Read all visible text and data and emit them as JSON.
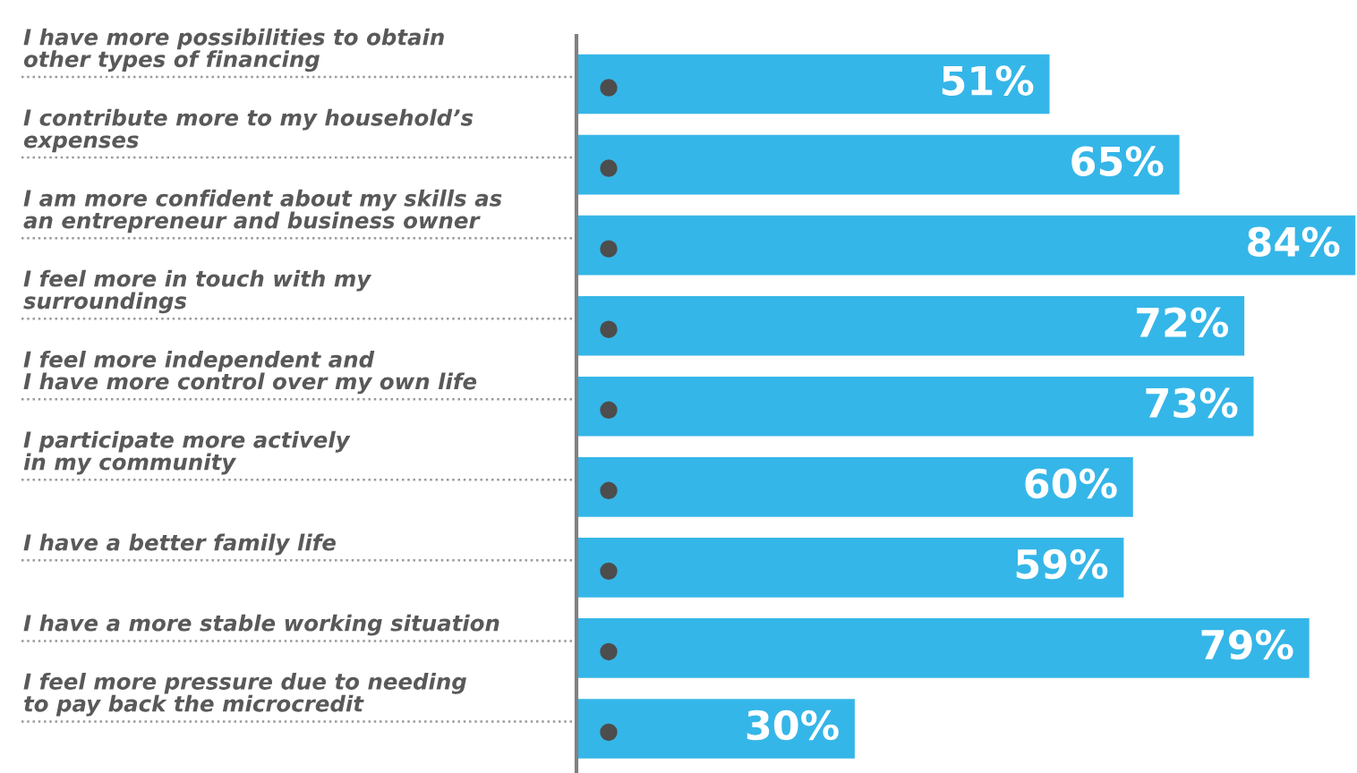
{
  "chart_data": {
    "type": "bar",
    "orientation": "horizontal",
    "categories": [
      "I have more possibilities to obtain\nother types of financing",
      "I contribute more to my household’s\nexpenses",
      "I am more confident about my skills as\nan entrepreneur and business owner",
      "I feel more in touch with my\nsurroundings",
      "I feel more independent and\nI have more control over my own life",
      "I participate more actively\nin my community",
      "I have a better family life",
      "I have a more stable working situation",
      "I feel more pressure due to needing\nto pay back the microcredit"
    ],
    "values": [
      51,
      65,
      84,
      72,
      73,
      60,
      59,
      79,
      30
    ],
    "value_labels": [
      "51%",
      "65%",
      "84%",
      "72%",
      "73%",
      "60%",
      "59%",
      "79%",
      "30%"
    ],
    "color": "#35b6e8",
    "xlim": [
      0,
      84
    ],
    "tick_labels": false
  }
}
